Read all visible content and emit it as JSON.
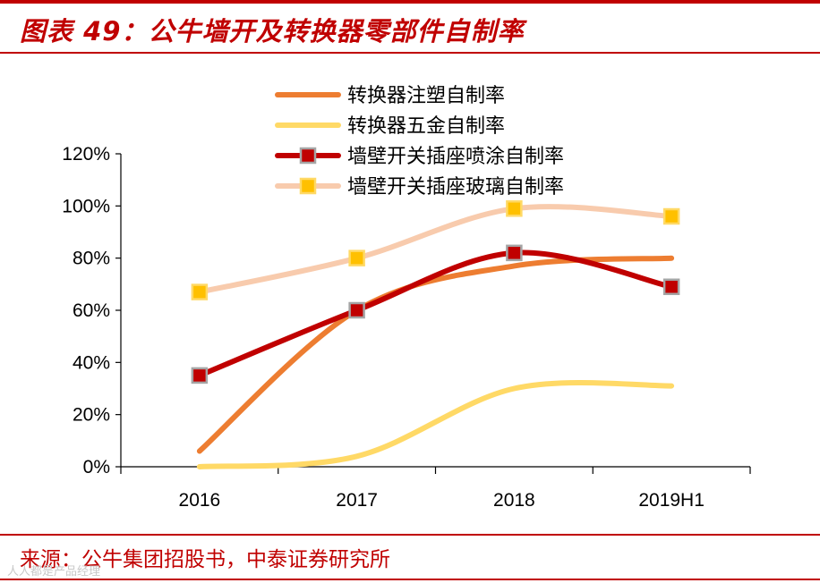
{
  "title": "图表 49：公牛墙开及转换器零部件自制率",
  "source": "来源：公牛集团招股书，中泰证券研究所",
  "watermark": "人人都是产品经理",
  "chart_data": {
    "type": "line",
    "categories": [
      "2016",
      "2017",
      "2018",
      "2019H1"
    ],
    "ylim": [
      0,
      1.2
    ],
    "yticks": [
      0,
      0.2,
      0.4,
      0.6,
      0.8,
      1.0,
      1.2
    ],
    "ytick_labels": [
      "0%",
      "20%",
      "40%",
      "60%",
      "80%",
      "100%",
      "120%"
    ],
    "xlabel": "",
    "ylabel": "",
    "grid": false,
    "legend_position": "top",
    "series": [
      {
        "name": "转换器注塑自制率",
        "values": [
          0.06,
          0.6,
          0.77,
          0.8
        ],
        "color": "#ed7d31",
        "marker": "none",
        "smooth": true
      },
      {
        "name": "转换器五金自制率",
        "values": [
          0.0,
          0.04,
          0.3,
          0.31
        ],
        "color": "#ffd966",
        "marker": "none",
        "smooth": true
      },
      {
        "name": "墙壁开关插座喷涂自制率",
        "values": [
          0.35,
          0.6,
          0.82,
          0.69
        ],
        "color": "#c00000",
        "marker": "square",
        "marker_fill": "#c00000",
        "marker_edge": "#a5a5a5",
        "smooth": true
      },
      {
        "name": "墙壁开关插座玻璃自制率",
        "values": [
          0.67,
          0.8,
          0.99,
          0.96
        ],
        "color": "#f8cbad",
        "marker": "square",
        "marker_fill": "#ffc000",
        "marker_edge": "#ffd966",
        "smooth": true
      }
    ]
  }
}
